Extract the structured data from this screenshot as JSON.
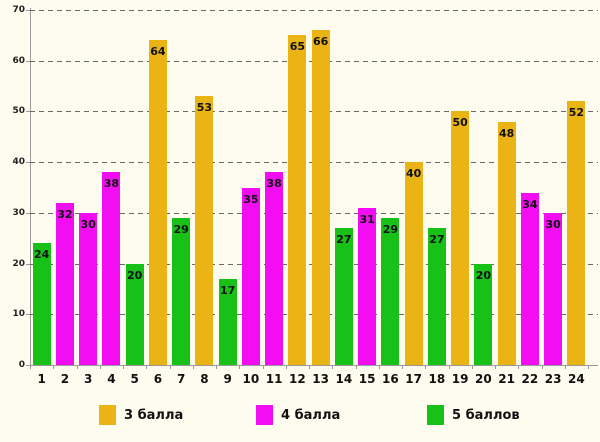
{
  "colors": {
    "background": "#FDFCEF",
    "grid": "#6A6A6A",
    "axis": "#9A9A9A",
    "text": "#111111"
  },
  "chart_data": {
    "type": "bar",
    "title": "",
    "xlabel": "",
    "ylabel": "",
    "ylim": [
      0,
      70
    ],
    "yticks": [
      0,
      10,
      20,
      30,
      40,
      50,
      60,
      70
    ],
    "grid": "dashed-horizontal",
    "legend_position": "bottom",
    "series_legend": [
      {
        "name": "3 балла",
        "color": "#E9B414"
      },
      {
        "name": "4 балла",
        "color": "#F20DF2"
      },
      {
        "name": "5 баллов",
        "color": "#17C117"
      }
    ],
    "categories": [
      "1",
      "2",
      "3",
      "4",
      "5",
      "6",
      "7",
      "8",
      "9",
      "10",
      "11",
      "12",
      "13",
      "14",
      "15",
      "16",
      "17",
      "18",
      "19",
      "20",
      "21",
      "22",
      "23",
      "24"
    ],
    "bars": [
      {
        "category": "1",
        "value": 24,
        "series": "5 баллов"
      },
      {
        "category": "2",
        "value": 32,
        "series": "4 балла"
      },
      {
        "category": "3",
        "value": 30,
        "series": "4 балла"
      },
      {
        "category": "4",
        "value": 38,
        "series": "4 балла"
      },
      {
        "category": "5",
        "value": 20,
        "series": "5 баллов"
      },
      {
        "category": "6",
        "value": 64,
        "series": "3 балла"
      },
      {
        "category": "7",
        "value": 29,
        "series": "5 баллов"
      },
      {
        "category": "8",
        "value": 53,
        "series": "3 балла"
      },
      {
        "category": "9",
        "value": 17,
        "series": "5 баллов"
      },
      {
        "category": "10",
        "value": 35,
        "series": "4 балла"
      },
      {
        "category": "11",
        "value": 38,
        "series": "4 балла"
      },
      {
        "category": "12",
        "value": 65,
        "series": "3 балла"
      },
      {
        "category": "13",
        "value": 66,
        "series": "3 балла"
      },
      {
        "category": "14",
        "value": 27,
        "series": "5 баллов"
      },
      {
        "category": "15",
        "value": 31,
        "series": "4 балла"
      },
      {
        "category": "16",
        "value": 29,
        "series": "5 баллов"
      },
      {
        "category": "17",
        "value": 40,
        "series": "3 балла"
      },
      {
        "category": "18",
        "value": 27,
        "series": "5 баллов"
      },
      {
        "category": "19",
        "value": 50,
        "series": "3 балла"
      },
      {
        "category": "20",
        "value": 20,
        "series": "5 баллов"
      },
      {
        "category": "21",
        "value": 48,
        "series": "3 балла"
      },
      {
        "category": "22",
        "value": 34,
        "series": "4 балла"
      },
      {
        "category": "23",
        "value": 30,
        "series": "4 балла"
      },
      {
        "category": "24",
        "value": 52,
        "series": "3 балла"
      }
    ]
  }
}
